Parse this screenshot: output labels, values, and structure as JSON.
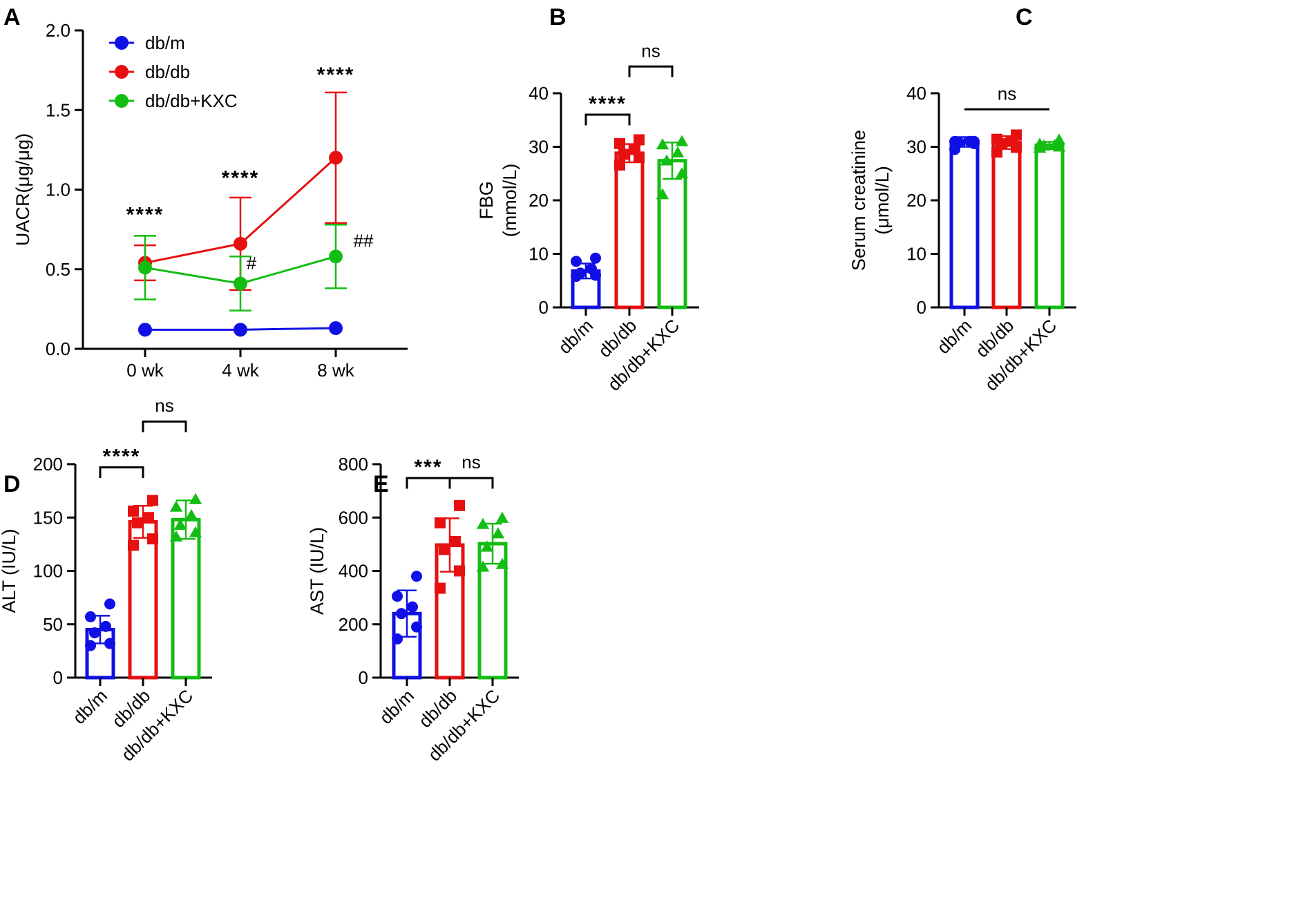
{
  "colors": {
    "db_m": "#1010e6",
    "db_db": "#e61010",
    "kxc": "#14bd14",
    "axis": "#000000"
  },
  "chart_data": [
    {
      "panel": "A",
      "type": "line",
      "title": "",
      "xlabel": "",
      "ylabel": "UACR(μg/μg)",
      "categories": [
        "0 wk",
        "4 wk",
        "8 wk"
      ],
      "ylim": [
        0,
        2.0
      ],
      "yticks": [
        0.0,
        0.5,
        1.0,
        1.5,
        2.0
      ],
      "ytick_labels": [
        "0.0",
        "0.5",
        "1.0",
        "1.5",
        "2.0"
      ],
      "legend_position": "top-left",
      "series": [
        {
          "name": "db/m",
          "values": [
            0.12,
            0.12,
            0.13
          ],
          "sd": [
            0.01,
            0.01,
            0.02
          ]
        },
        {
          "name": "db/db",
          "values": [
            0.54,
            0.66,
            1.2
          ],
          "sd": [
            0.11,
            0.29,
            0.41
          ]
        },
        {
          "name": "db/db+KXC",
          "values": [
            0.51,
            0.41,
            0.58
          ],
          "sd": [
            0.2,
            0.17,
            0.2
          ]
        }
      ],
      "annotations": [
        {
          "category": "0 wk",
          "text": "****",
          "kind": "stars",
          "y": 0.8
        },
        {
          "category": "4 wk",
          "text": "****",
          "kind": "stars",
          "y": 1.03
        },
        {
          "category": "8 wk",
          "text": "****",
          "kind": "stars",
          "y": 1.68
        },
        {
          "category": "4 wk",
          "text": "#",
          "kind": "hash",
          "y": 0.5
        },
        {
          "category": "8 wk",
          "text": "##",
          "kind": "hash",
          "y": 0.64
        }
      ]
    },
    {
      "panel": "B",
      "type": "bar",
      "title": "",
      "xlabel": "",
      "ylabel": "FBG",
      "ylabel2": "(mmol/L)",
      "categories": [
        "db/m",
        "db/db",
        "db/db+KXC"
      ],
      "ylim": [
        0,
        40
      ],
      "yticks": [
        0,
        10,
        20,
        30,
        40
      ],
      "ytick_labels": [
        "0",
        "10",
        "20",
        "30",
        "40"
      ],
      "values": [
        6.8,
        28.8,
        27.4
      ],
      "sd": [
        1.4,
        1.7,
        3.4
      ],
      "points": [
        [
          5.8,
          6.0,
          6.4,
          7.2,
          8.6,
          9.2
        ],
        [
          26.6,
          28.0,
          28.6,
          29.6,
          30.6,
          31.3
        ],
        [
          21.1,
          25.0,
          27.4,
          28.9,
          30.4,
          31.0
        ]
      ],
      "markers": [
        "circle",
        "square",
        "triangle"
      ],
      "comparisons": [
        {
          "from": 0,
          "to": 1,
          "text": "****",
          "y": 36.0
        },
        {
          "from": 1,
          "to": 2,
          "text": "ns",
          "y": 45.0
        }
      ]
    },
    {
      "panel": "C",
      "type": "bar",
      "title": "",
      "xlabel": "",
      "ylabel": "Serum creatinine",
      "ylabel2": "(μmol/L)",
      "categories": [
        "db/m",
        "db/db",
        "db/db+KXC"
      ],
      "ylim": [
        0,
        40
      ],
      "yticks": [
        0,
        10,
        20,
        30,
        40
      ],
      "ytick_labels": [
        "0",
        "10",
        "20",
        "30",
        "40"
      ],
      "values": [
        30.9,
        30.8,
        30.3
      ],
      "sd": [
        0.9,
        1.2,
        0.6
      ],
      "points": [
        [
          29.5,
          30.6,
          30.8,
          31.0,
          31.0,
          31.0
        ],
        [
          29.0,
          29.9,
          30.6,
          31.0,
          31.4,
          32.2
        ],
        [
          29.8,
          30.0,
          30.2,
          30.3,
          30.5,
          31.3
        ]
      ],
      "markers": [
        "circle",
        "square",
        "triangle"
      ],
      "comparisons": [
        {
          "from": 0,
          "to": 2,
          "text": "ns",
          "y": 37.0,
          "flat": true
        }
      ]
    },
    {
      "panel": "D",
      "type": "bar",
      "title": "",
      "xlabel": "",
      "ylabel": "ALT (IU/L)",
      "categories": [
        "db/m",
        "db/db",
        "db/db+KXC"
      ],
      "ylim": [
        0,
        200
      ],
      "yticks": [
        0,
        50,
        100,
        150,
        200
      ],
      "ytick_labels": [
        "0",
        "50",
        "100",
        "150",
        "200"
      ],
      "values": [
        45,
        146,
        148
      ],
      "sd": [
        13,
        15,
        18
      ],
      "points": [
        [
          30,
          32,
          42,
          48,
          57,
          69
        ],
        [
          124,
          130,
          145,
          150,
          156,
          166
        ],
        [
          132,
          136,
          143,
          152,
          160,
          167
        ]
      ],
      "markers": [
        "circle",
        "square",
        "triangle"
      ],
      "comparisons": [
        {
          "from": 0,
          "to": 1,
          "text": "****",
          "y": 197
        },
        {
          "from": 1,
          "to": 2,
          "text": "ns",
          "y": 240
        }
      ]
    },
    {
      "panel": "E",
      "type": "bar",
      "title": "",
      "xlabel": "",
      "ylabel": "AST (IU/L)",
      "categories": [
        "db/m",
        "db/db",
        "db/db+KXC"
      ],
      "ylim": [
        0,
        800
      ],
      "yticks": [
        0,
        200,
        400,
        600,
        800
      ],
      "ytick_labels": [
        "0",
        "200",
        "400",
        "600",
        "800"
      ],
      "values": [
        240,
        497,
        502
      ],
      "sd": [
        87,
        100,
        75
      ],
      "points": [
        [
          145,
          190,
          240,
          265,
          305,
          380
        ],
        [
          335,
          400,
          480,
          510,
          580,
          645
        ],
        [
          415,
          425,
          490,
          540,
          575,
          598
        ]
      ],
      "markers": [
        "circle",
        "square",
        "triangle"
      ],
      "comparisons": [
        {
          "from": 0,
          "to": 1,
          "text": "***",
          "y": 748
        },
        {
          "from": 1,
          "to": 2,
          "text": "ns",
          "y": 748
        }
      ]
    }
  ]
}
